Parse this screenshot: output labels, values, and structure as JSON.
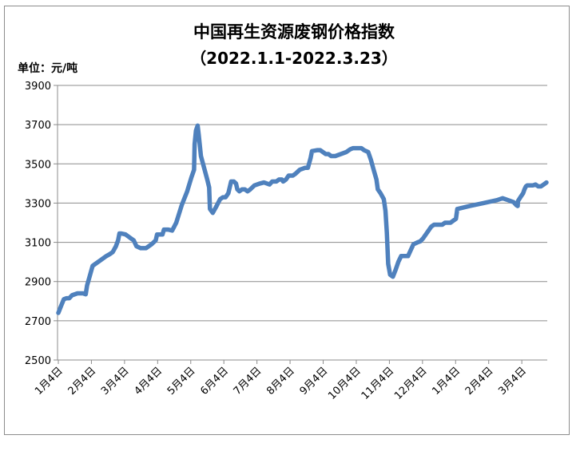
{
  "chart_data": {
    "type": "line",
    "title": "中国再生资源废钢价格指数",
    "subtitle": "（2022.1.1-2022.3.23）",
    "unit_label": "单位：元/吨",
    "ylim": [
      2500,
      3900
    ],
    "yticks": [
      2500,
      2700,
      2900,
      3100,
      3300,
      3500,
      3700,
      3900
    ],
    "grid": true,
    "legend": "none",
    "line_color": "#4f81bd",
    "x_tick_labels": [
      "1月4日",
      "2月4日",
      "3月4日",
      "4月4日",
      "5月4日",
      "6月4日",
      "7月4日",
      "8月4日",
      "9月4日",
      "10月4日",
      "11月4日",
      "12月4日",
      "1月4日",
      "2月4日",
      "3月4日"
    ],
    "series": [
      {
        "values": [
          [
            0.0,
            2740
          ],
          [
            1.0,
            2775
          ],
          [
            2.0,
            2810
          ],
          [
            3.0,
            2815
          ],
          [
            4.0,
            2815
          ],
          [
            5.0,
            2830
          ],
          [
            7.0,
            2840
          ],
          [
            9.0,
            2840
          ],
          [
            10.0,
            2835
          ],
          [
            10.5,
            2880
          ],
          [
            11.5,
            2930
          ],
          [
            12.5,
            2980
          ],
          [
            13.5,
            2990
          ],
          [
            15.5,
            3010
          ],
          [
            17.5,
            3030
          ],
          [
            18.8,
            3040
          ],
          [
            19.8,
            3050
          ],
          [
            21.0,
            3080
          ],
          [
            21.8,
            3110
          ],
          [
            22.3,
            3145
          ],
          [
            23.0,
            3145
          ],
          [
            24.5,
            3140
          ],
          [
            25.5,
            3130
          ],
          [
            26.5,
            3120
          ],
          [
            27.5,
            3110
          ],
          [
            28.5,
            3080
          ],
          [
            30.0,
            3070
          ],
          [
            32.0,
            3070
          ],
          [
            34.0,
            3090
          ],
          [
            35.5,
            3110
          ],
          [
            36.0,
            3140
          ],
          [
            38.0,
            3140
          ],
          [
            38.5,
            3165
          ],
          [
            40.0,
            3165
          ],
          [
            41.5,
            3160
          ],
          [
            43.0,
            3200
          ],
          [
            45.0,
            3290
          ],
          [
            47.0,
            3360
          ],
          [
            48.5,
            3430
          ],
          [
            49.5,
            3470
          ],
          [
            49.7,
            3600
          ],
          [
            50.2,
            3670
          ],
          [
            50.8,
            3695
          ],
          [
            51.2,
            3650
          ],
          [
            52.0,
            3540
          ],
          [
            54.3,
            3420
          ],
          [
            55.0,
            3380
          ],
          [
            55.3,
            3270
          ],
          [
            56.3,
            3250
          ],
          [
            57.5,
            3280
          ],
          [
            59.0,
            3320
          ],
          [
            60.0,
            3330
          ],
          [
            61.0,
            3330
          ],
          [
            62.0,
            3350
          ],
          [
            63.0,
            3410
          ],
          [
            64.0,
            3410
          ],
          [
            64.8,
            3400
          ],
          [
            65.3,
            3370
          ],
          [
            66.0,
            3360
          ],
          [
            67.0,
            3370
          ],
          [
            68.0,
            3370
          ],
          [
            69.0,
            3360
          ],
          [
            70.0,
            3370
          ],
          [
            71.5,
            3390
          ],
          [
            73.5,
            3400
          ],
          [
            75.0,
            3405
          ],
          [
            77.0,
            3395
          ],
          [
            78.0,
            3410
          ],
          [
            79.5,
            3410
          ],
          [
            80.5,
            3420
          ],
          [
            81.5,
            3420
          ],
          [
            82.0,
            3410
          ],
          [
            83.0,
            3420
          ],
          [
            84.0,
            3440
          ],
          [
            85.5,
            3440
          ],
          [
            86.5,
            3450
          ],
          [
            88.0,
            3470
          ],
          [
            90.0,
            3480
          ],
          [
            91.0,
            3480
          ],
          [
            92.0,
            3530
          ],
          [
            92.5,
            3565
          ],
          [
            94.5,
            3570
          ],
          [
            95.5,
            3570
          ],
          [
            96.5,
            3560
          ],
          [
            97.5,
            3550
          ],
          [
            98.5,
            3550
          ],
          [
            99.5,
            3540
          ],
          [
            101.0,
            3540
          ],
          [
            103.0,
            3550
          ],
          [
            105.0,
            3560
          ],
          [
            106.5,
            3575
          ],
          [
            107.5,
            3580
          ],
          [
            109.0,
            3580
          ],
          [
            110.5,
            3580
          ],
          [
            111.5,
            3570
          ],
          [
            113.0,
            3560
          ],
          [
            114.0,
            3520
          ],
          [
            115.0,
            3470
          ],
          [
            116.0,
            3420
          ],
          [
            116.5,
            3370
          ],
          [
            117.5,
            3350
          ],
          [
            118.7,
            3320
          ],
          [
            119.3,
            3260
          ],
          [
            119.8,
            3150
          ],
          [
            120.3,
            2990
          ],
          [
            121.0,
            2935
          ],
          [
            122.0,
            2925
          ],
          [
            123.0,
            2960
          ],
          [
            124.0,
            3000
          ],
          [
            125.0,
            3030
          ],
          [
            126.5,
            3030
          ],
          [
            127.5,
            3030
          ],
          [
            128.5,
            3060
          ],
          [
            129.5,
            3090
          ],
          [
            131.0,
            3100
          ],
          [
            132.0,
            3105
          ],
          [
            133.0,
            3120
          ],
          [
            134.0,
            3140
          ],
          [
            135.0,
            3160
          ],
          [
            136.0,
            3180
          ],
          [
            137.0,
            3190
          ],
          [
            138.0,
            3190
          ],
          [
            139.0,
            3190
          ],
          [
            140.0,
            3190
          ],
          [
            141.0,
            3200
          ],
          [
            142.0,
            3200
          ],
          [
            143.0,
            3200
          ],
          [
            144.0,
            3210
          ],
          [
            145.0,
            3220
          ],
          [
            145.5,
            3270
          ],
          [
            147.0,
            3275
          ],
          [
            150.0,
            3285
          ],
          [
            155.0,
            3300
          ],
          [
            160.0,
            3315
          ],
          [
            162.0,
            3325
          ],
          [
            163.0,
            3320
          ],
          [
            164.0,
            3315
          ],
          [
            165.0,
            3310
          ],
          [
            166.0,
            3305
          ],
          [
            167.0,
            3290
          ],
          [
            167.5,
            3285
          ],
          [
            167.6,
            3310
          ],
          [
            168.5,
            3330
          ],
          [
            169.5,
            3350
          ],
          [
            170.0,
            3370
          ],
          [
            170.5,
            3385
          ],
          [
            171.0,
            3390
          ],
          [
            172.0,
            3390
          ],
          [
            173.0,
            3390
          ],
          [
            174.0,
            3395
          ],
          [
            175.0,
            3385
          ],
          [
            176.0,
            3385
          ],
          [
            177.0,
            3395
          ],
          [
            178.0,
            3405
          ]
        ]
      }
    ]
  }
}
